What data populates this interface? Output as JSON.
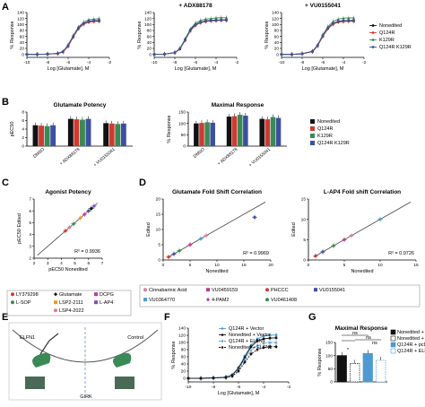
{
  "panel_labels": [
    "A",
    "B",
    "C",
    "D",
    "E",
    "F",
    "G"
  ],
  "colors": {
    "nonedited": "#111111",
    "q124r": "#d03a2f",
    "k129r": "#3a8a55",
    "q124r_k129r": "#3e4f9e"
  },
  "chart_data": [
    {
      "id": "A1",
      "type": "line",
      "title": "",
      "xlabel": "Log [Glutamate], M",
      "ylabel": "% Response",
      "xlim": [
        -10,
        -2
      ],
      "ylim": [
        -10,
        140
      ],
      "xticks": [
        -10,
        -8,
        -6,
        -4,
        -2
      ],
      "yticks": [
        0,
        20,
        40,
        60,
        80,
        100,
        120,
        140
      ],
      "x": [
        -10,
        -9,
        -8,
        -7,
        -6.5,
        -6,
        -5.5,
        -5,
        -4.5,
        -4,
        -3.5,
        -3
      ],
      "series": [
        {
          "name": "Nonedited",
          "color": "#111111",
          "values": [
            0,
            0,
            1,
            3,
            8,
            28,
            60,
            88,
            103,
            110,
            112,
            113
          ]
        },
        {
          "name": "Q124R",
          "color": "#d03a2f",
          "values": [
            0,
            0,
            1,
            3,
            8,
            27,
            58,
            86,
            101,
            108,
            110,
            111
          ]
        },
        {
          "name": "K129R",
          "color": "#3a8a55",
          "values": [
            0,
            0,
            1,
            4,
            10,
            32,
            64,
            92,
            108,
            116,
            118,
            120
          ]
        },
        {
          "name": "Q124R K129R",
          "color": "#3e4f9e",
          "values": [
            0,
            0,
            1,
            3,
            9,
            30,
            61,
            89,
            104,
            111,
            113,
            114
          ]
        }
      ]
    },
    {
      "id": "A2",
      "type": "line",
      "title": "+ ADX88178",
      "xlabel": "Log [Glutamate], M",
      "ylabel": "% Response",
      "xlim": [
        -10,
        -2
      ],
      "ylim": [
        -10,
        140
      ],
      "xticks": [
        -10,
        -8,
        -6,
        -4,
        -2
      ],
      "yticks": [
        0,
        20,
        40,
        60,
        80,
        100,
        120,
        140
      ],
      "x": [
        -10,
        -9,
        -8,
        -7.5,
        -7,
        -6.5,
        -6,
        -5.5,
        -5,
        -4.5,
        -4,
        -3.5,
        -3
      ],
      "series": [
        {
          "name": "Nonedited",
          "color": "#111111",
          "values": [
            0,
            1,
            6,
            20,
            50,
            82,
            100,
            108,
            112,
            114,
            115,
            115,
            116
          ]
        },
        {
          "name": "Q124R",
          "color": "#d03a2f",
          "values": [
            0,
            1,
            5,
            18,
            47,
            79,
            97,
            106,
            110,
            112,
            113,
            114,
            114
          ]
        },
        {
          "name": "K129R",
          "color": "#3a8a55",
          "values": [
            0,
            1,
            6,
            21,
            52,
            85,
            105,
            114,
            118,
            120,
            122,
            123,
            123
          ]
        },
        {
          "name": "Q124R K129R",
          "color": "#3e4f9e",
          "values": [
            0,
            1,
            6,
            19,
            49,
            80,
            99,
            107,
            111,
            113,
            114,
            115,
            115
          ]
        }
      ]
    },
    {
      "id": "A3",
      "type": "line",
      "title": "+ VU0155041",
      "xlabel": "Log [Glutamate], M",
      "ylabel": "% Response",
      "xlim": [
        -10,
        -2
      ],
      "ylim": [
        -10,
        140
      ],
      "xticks": [
        -10,
        -8,
        -6,
        -4,
        -2
      ],
      "yticks": [
        0,
        20,
        40,
        60,
        80,
        100,
        120,
        140
      ],
      "x": [
        -10,
        -9,
        -8,
        -7,
        -6.5,
        -6,
        -5.5,
        -5,
        -4.5,
        -4,
        -3.5,
        -3
      ],
      "series": [
        {
          "name": "Nonedited",
          "color": "#111111",
          "values": [
            0,
            0,
            2,
            10,
            30,
            62,
            88,
            103,
            110,
            112,
            113,
            113
          ]
        },
        {
          "name": "Q124R",
          "color": "#d03a2f",
          "values": [
            0,
            0,
            2,
            9,
            28,
            60,
            86,
            101,
            108,
            110,
            111,
            111
          ]
        },
        {
          "name": "K129R",
          "color": "#3a8a55",
          "values": [
            0,
            0,
            2,
            11,
            32,
            66,
            93,
            110,
            118,
            121,
            122,
            122
          ]
        },
        {
          "name": "Q124R K129R",
          "color": "#3e4f9e",
          "values": [
            0,
            0,
            2,
            10,
            30,
            63,
            89,
            104,
            111,
            113,
            114,
            114
          ]
        }
      ]
    },
    {
      "id": "B1",
      "type": "bar",
      "title": "Glutamate Potency",
      "ylabel": "pEC50",
      "ylim": [
        0,
        8
      ],
      "yticks": [
        0,
        2,
        4,
        6,
        8
      ],
      "categories": [
        "DMSO",
        "+ ADX88178",
        "+ VU0155041"
      ],
      "series": [
        {
          "name": "Nonedited",
          "color": "#111111",
          "values": [
            4.9,
            6.4,
            5.4
          ]
        },
        {
          "name": "Q124R",
          "color": "#d03a2f",
          "values": [
            4.8,
            6.3,
            5.3
          ]
        },
        {
          "name": "K129R",
          "color": "#3a8a55",
          "values": [
            4.7,
            6.2,
            5.2
          ]
        },
        {
          "name": "Q124R K129R",
          "color": "#3e4f9e",
          "values": [
            4.9,
            6.4,
            5.3
          ]
        }
      ]
    },
    {
      "id": "B2",
      "type": "bar",
      "title": "Maximal Response",
      "ylabel": "% Response",
      "ylim": [
        0,
        150
      ],
      "yticks": [
        0,
        50,
        100,
        150
      ],
      "categories": [
        "DMSO",
        "+ ADX88178",
        "+ VU0155041"
      ],
      "series": [
        {
          "name": "Nonedited",
          "color": "#111111",
          "values": [
            100,
            130,
            120
          ]
        },
        {
          "name": "Q124R",
          "color": "#d03a2f",
          "values": [
            102,
            132,
            118
          ]
        },
        {
          "name": "K129R",
          "color": "#3a8a55",
          "values": [
            105,
            138,
            128
          ]
        },
        {
          "name": "Q124R K129R",
          "color": "#3e4f9e",
          "values": [
            103,
            134,
            124
          ]
        }
      ]
    },
    {
      "id": "C",
      "type": "scatter",
      "title": "Agonist Potency",
      "xlabel": "pEC50 Nonedited",
      "ylabel": "pEC50 Edited",
      "xlim": [
        2,
        7
      ],
      "ylim": [
        2,
        7
      ],
      "xticks": [
        2,
        3,
        4,
        5,
        6,
        7
      ],
      "yticks": [
        2,
        3,
        4,
        5,
        6,
        7
      ],
      "annotation": "R² = 0.9936",
      "points": [
        {
          "x": 4.3,
          "y": 4.3,
          "color": "#d03a2f"
        },
        {
          "x": 4.6,
          "y": 4.6,
          "color": "#e07a9b"
        },
        {
          "x": 4.9,
          "y": 4.9,
          "color": "#3a8a55"
        },
        {
          "x": 5.4,
          "y": 5.4,
          "color": "#e59a2b"
        },
        {
          "x": 5.7,
          "y": 5.7,
          "color": "#c03a8a"
        },
        {
          "x": 6.0,
          "y": 6.0,
          "color": "#3e4f9e"
        },
        {
          "x": 6.2,
          "y": 6.2,
          "color": "#111111"
        },
        {
          "x": 6.4,
          "y": 6.4,
          "color": "#7a4fc0"
        }
      ]
    },
    {
      "id": "D1",
      "type": "scatter",
      "title": "Glutamate Fold Shift Correlation",
      "xlabel": "Nonedited",
      "ylabel": "Edited",
      "xlim": [
        0,
        20
      ],
      "ylim": [
        0,
        20
      ],
      "xticks": [
        0,
        5,
        10,
        15,
        20
      ],
      "yticks": [
        0,
        5,
        10,
        15,
        20
      ],
      "annotation": "R² = 0.9969",
      "points": [
        {
          "x": 1,
          "y": 1,
          "color": "#d03a2f"
        },
        {
          "x": 2,
          "y": 2,
          "color": "#3e4f9e"
        },
        {
          "x": 3,
          "y": 3,
          "color": "#3a8a55"
        },
        {
          "x": 5,
          "y": 5,
          "color": "#c03a8a"
        },
        {
          "x": 7,
          "y": 7,
          "color": "#4e9ad0"
        },
        {
          "x": 8,
          "y": 8,
          "color": "#e07a9b"
        },
        {
          "x": 17,
          "y": 14,
          "color": "#3e4f9e"
        }
      ]
    },
    {
      "id": "D2",
      "type": "scatter",
      "title": "L-AP4 Fold shift Correlation",
      "xlabel": "Nonedited",
      "ylabel": "Edited",
      "xlim": [
        0,
        15
      ],
      "ylim": [
        0,
        15
      ],
      "xticks": [
        0,
        5,
        10,
        15
      ],
      "yticks": [
        0,
        5,
        10,
        15
      ],
      "annotation": "R² = 0.9726",
      "points": [
        {
          "x": 1,
          "y": 1,
          "color": "#d03a2f"
        },
        {
          "x": 2,
          "y": 2,
          "color": "#3e4f9e"
        },
        {
          "x": 3.5,
          "y": 3.5,
          "color": "#3a8a55"
        },
        {
          "x": 5,
          "y": 5,
          "color": "#c03a8a"
        },
        {
          "x": 6,
          "y": 6,
          "color": "#e07a9b"
        },
        {
          "x": 10,
          "y": 10,
          "color": "#4e9ad0"
        }
      ]
    },
    {
      "id": "F",
      "type": "line",
      "title": "",
      "xlabel": "Log [Glutamate], M",
      "ylabel": "% Response",
      "xlim": [
        -10,
        -2
      ],
      "ylim": [
        -10,
        140
      ],
      "xticks": [
        -10,
        -8,
        -6,
        -4,
        -2
      ],
      "yticks": [
        0,
        20,
        40,
        60,
        80,
        100,
        120,
        140
      ],
      "x": [
        -10,
        -9,
        -8,
        -7,
        -6.5,
        -6,
        -5.5,
        -5,
        -4.5,
        -4,
        -3.5,
        -3
      ],
      "series": [
        {
          "name": "Q124R + Vector",
          "color": "#4e9ad0",
          "values": [
            0,
            0,
            1,
            4,
            10,
            30,
            62,
            92,
            110,
            118,
            120,
            121
          ]
        },
        {
          "name": "Nonedited + Vector",
          "color": "#111111",
          "values": [
            0,
            0,
            1,
            3,
            9,
            28,
            58,
            88,
            104,
            110,
            112,
            113
          ]
        },
        {
          "name": "Q124R + ELFN1",
          "color": "#4e9ad0",
          "values": [
            0,
            0,
            1,
            3,
            8,
            25,
            52,
            78,
            92,
            98,
            100,
            100
          ]
        },
        {
          "name": "Nonedited + ELFN1",
          "color": "#111111",
          "values": [
            0,
            0,
            1,
            2,
            6,
            20,
            45,
            68,
            80,
            86,
            88,
            88
          ]
        }
      ]
    },
    {
      "id": "G",
      "type": "bar",
      "title": "Maximal Response",
      "ylabel": "% Response",
      "ylim": [
        0,
        150
      ],
      "yticks": [
        0,
        50,
        100,
        150
      ],
      "categories": [
        "Nonedited + pcDNA3",
        "Nonedited + ELFN1",
        "Q124R + pcDNA3",
        "Q124R + ELFN1"
      ],
      "values": [
        100,
        70,
        108,
        82
      ],
      "colors": [
        "#111111",
        "#111111",
        "#4e9ad0",
        "#4e9ad0"
      ],
      "hatched": [
        false,
        true,
        false,
        true
      ],
      "annotations": [
        "*",
        "ns",
        "ns",
        "ns"
      ]
    }
  ],
  "legends": {
    "A": [
      "Nonedited",
      "Q124R",
      "K129R",
      "Q124R K129R"
    ],
    "B": [
      "Nonedited",
      "Q124R",
      "K129R",
      "Q124R K129R"
    ],
    "C": [
      {
        "label": "LY379298",
        "color": "#d03a2f",
        "shape": "circle"
      },
      {
        "label": "Glutamate",
        "color": "#111111",
        "shape": "diamond"
      },
      {
        "label": "DCPG",
        "color": "#c03a8a",
        "shape": "square"
      },
      {
        "label": "L-SOP",
        "color": "#3a8a55",
        "shape": "circle"
      },
      {
        "label": "LSP2-2111",
        "color": "#e59a2b",
        "shape": "square"
      },
      {
        "label": "L-AP4",
        "color": "#7a4fc0",
        "shape": "square"
      },
      {
        "label": "LSP4-2022",
        "color": "#e07a9b",
        "shape": "circle"
      }
    ],
    "D": [
      {
        "label": "Cinnabarinic Acid",
        "color": "#e07a9b",
        "shape": "circle"
      },
      {
        "label": "VU0459159",
        "color": "#c03a8a",
        "shape": "square"
      },
      {
        "label": "PHCCC",
        "color": "#d03a2f",
        "shape": "circle"
      },
      {
        "label": "VU0155041",
        "color": "#3e4f9e",
        "shape": "square"
      },
      {
        "label": "VU0364770",
        "color": "#4e9ad0",
        "shape": "square"
      },
      {
        "label": "4-PAM2",
        "color": "#c03a8a",
        "shape": "diamond"
      },
      {
        "label": "VU0461408",
        "color": "#3a8a55",
        "shape": "circle"
      }
    ],
    "F": [
      "Q124R + Vector",
      "Nonedited + Vector",
      "Q124R + ELFN1",
      "Nonedited + ELFN1"
    ],
    "G": [
      "Nonedited + pcDNA3",
      "Nonedited + ELFN1",
      "Q124R + pcDNA3",
      "Q124R + ELFN1"
    ]
  },
  "diagram": {
    "elfn1": "ELFN1",
    "control": "Control",
    "girk": "GIRK"
  }
}
